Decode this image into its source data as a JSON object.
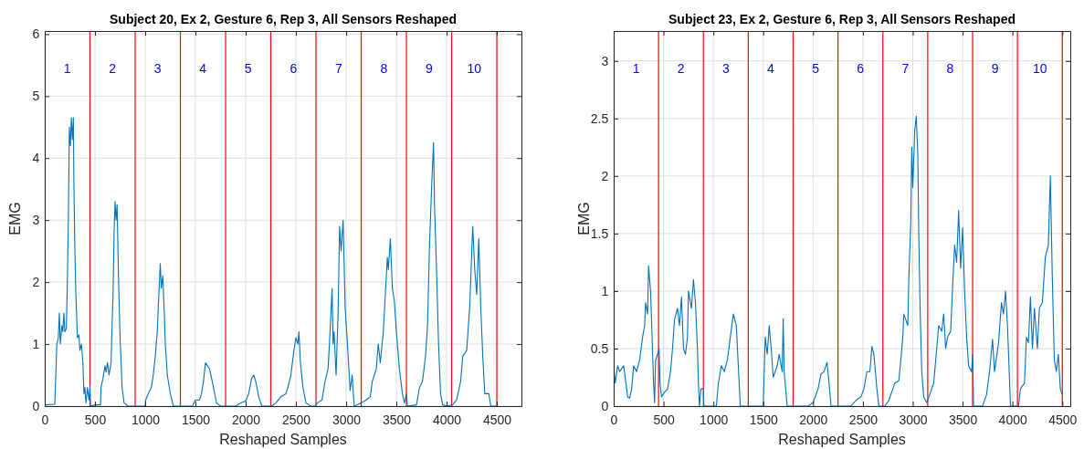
{
  "chart_data": [
    {
      "type": "line",
      "title": "Subject 20, Ex 2, Gesture 6, Rep 3, All Sensors Reshaped",
      "xlabel": "Reshaped Samples",
      "ylabel": "EMG",
      "xlim": [
        0,
        4745
      ],
      "ylim": [
        0,
        6.05
      ],
      "xticks": [
        0,
        500,
        1000,
        1500,
        2000,
        2500,
        3000,
        3500,
        4000,
        4500
      ],
      "yticks": [
        0,
        1,
        2,
        3,
        4,
        5,
        6
      ],
      "grid": true,
      "series": [
        {
          "color": "#0072bd",
          "x": [
            0,
            100,
            110,
            120,
            135,
            145,
            155,
            170,
            180,
            190,
            200,
            215,
            225,
            235,
            245,
            255,
            265,
            275,
            285,
            290,
            300,
            310,
            325,
            340,
            350,
            365,
            380,
            390,
            400,
            410,
            425,
            440,
            450,
            455,
            500,
            555,
            560,
            580,
            600,
            610,
            625,
            640,
            660,
            670,
            680,
            690,
            700,
            710,
            720,
            735,
            750,
            770,
            790,
            830,
            900,
            1000,
            1005,
            1030,
            1060,
            1080,
            1100,
            1120,
            1130,
            1150,
            1160,
            1175,
            1190,
            1200,
            1220,
            1250,
            1280,
            1470,
            1500,
            1540,
            1560,
            1580,
            1600,
            1620,
            1640,
            1680,
            1710,
            1750,
            1900,
            1950,
            2000,
            2030,
            2060,
            2080,
            2100,
            2130,
            2160,
            2260,
            2300,
            2350,
            2400,
            2420,
            2450,
            2480,
            2500,
            2520,
            2530,
            2545,
            2570,
            2600,
            2650,
            2700,
            2710,
            2760,
            2790,
            2820,
            2840,
            2860,
            2870,
            2880,
            2900,
            2920,
            2935,
            2950,
            2970,
            2990,
            3020,
            3040,
            3060,
            3080,
            3150,
            3200,
            3240,
            3260,
            3300,
            3320,
            3340,
            3370,
            3390,
            3410,
            3420,
            3440,
            3460,
            3480,
            3500,
            3530,
            3560,
            3580,
            3600,
            3610,
            3700,
            3730,
            3760,
            3790,
            3810,
            3830,
            3850,
            3870,
            3880,
            3900,
            3920,
            3940,
            3960,
            4000,
            4060,
            4100,
            4140,
            4160,
            4200,
            4230,
            4260,
            4280,
            4300,
            4320,
            4340,
            4360,
            4380,
            4420,
            4440,
            4500
          ],
          "values": [
            0.02,
            0.03,
            0.5,
            1.0,
            1.1,
            1.5,
            1.0,
            1.3,
            1.2,
            1.5,
            1.2,
            1.25,
            2.0,
            3.0,
            4.5,
            4.2,
            4.65,
            4.3,
            4.65,
            3.6,
            2.5,
            1.8,
            1.1,
            1.15,
            0.9,
            1.0,
            0.7,
            0.2,
            0.3,
            0.05,
            0.3,
            0.1,
            0.3,
            0.0,
            0.02,
            0.02,
            0.3,
            0.45,
            0.65,
            0.55,
            0.7,
            0.5,
            0.7,
            1.3,
            1.8,
            2.8,
            3.3,
            3.0,
            3.25,
            2.0,
            1.1,
            0.3,
            0.05,
            0.0,
            0.0,
            0.0,
            0.1,
            0.2,
            0.3,
            0.5,
            0.8,
            1.2,
            1.6,
            2.3,
            1.9,
            2.1,
            1.5,
            1.0,
            0.5,
            0.2,
            0.0,
            0.0,
            0.1,
            0.1,
            0.2,
            0.4,
            0.7,
            0.65,
            0.6,
            0.3,
            0.05,
            0.0,
            0.0,
            0.05,
            0.08,
            0.2,
            0.45,
            0.5,
            0.4,
            0.15,
            0.0,
            0.0,
            0.05,
            0.15,
            0.2,
            0.3,
            0.5,
            0.9,
            1.1,
            1.0,
            1.2,
            0.7,
            0.3,
            0.05,
            0.0,
            0.0,
            0.05,
            0.1,
            0.4,
            0.6,
            1.2,
            1.9,
            1.0,
            1.2,
            0.5,
            1.5,
            2.9,
            2.5,
            3.0,
            1.6,
            0.8,
            0.25,
            0.5,
            0.0,
            0.05,
            0.1,
            0.15,
            0.4,
            0.6,
            1.0,
            0.7,
            1.2,
            1.8,
            2.4,
            2.2,
            2.7,
            1.9,
            1.7,
            1.2,
            0.6,
            0.2,
            0.05,
            0.2,
            0.0,
            0.02,
            0.3,
            0.4,
            0.8,
            1.3,
            2.6,
            3.5,
            4.25,
            3.2,
            2.2,
            1.0,
            0.2,
            0.02,
            0.0,
            0.02,
            0.1,
            0.4,
            0.8,
            0.9,
            1.6,
            2.9,
            2.2,
            1.8,
            2.7,
            1.6,
            0.8,
            0.2,
            0.2,
            0.0,
            0.0
          ]
        }
      ],
      "ref_lines": [
        {
          "axis": "x",
          "value": 450,
          "color": "#ff0000"
        },
        {
          "axis": "x",
          "value": 900,
          "color": "#ff0000"
        },
        {
          "axis": "x",
          "value": 1350,
          "color": "#ff0000"
        },
        {
          "axis": "x",
          "value": 1800,
          "color": "#ff0000"
        },
        {
          "axis": "x",
          "value": 2250,
          "color": "#ff0000"
        },
        {
          "axis": "x",
          "value": 2700,
          "color": "#ff0000"
        },
        {
          "axis": "x",
          "value": 3150,
          "color": "#ff0000"
        },
        {
          "axis": "x",
          "value": 3600,
          "color": "#ff0000"
        },
        {
          "axis": "x",
          "value": 4050,
          "color": "#ff0000"
        },
        {
          "axis": "x",
          "value": 4500,
          "color": "#ff0000"
        }
      ],
      "annotations": [
        "1",
        "2",
        "3",
        "4",
        "5",
        "6",
        "7",
        "8",
        "9",
        "10"
      ]
    },
    {
      "type": "line",
      "title": "Subject 23, Ex 2, Gesture 6, Rep 3, All Sensors Reshaped",
      "xlabel": "Reshaped Samples",
      "ylabel": "EMG",
      "xlim": [
        0,
        4580
      ],
      "ylim": [
        0,
        3.26
      ],
      "xticks": [
        0,
        500,
        1000,
        1500,
        2000,
        2500,
        3000,
        3500,
        4000,
        4500
      ],
      "yticks": [
        0,
        0.5,
        1,
        1.5,
        2,
        2.5,
        3
      ],
      "grid": true,
      "series": [
        {
          "color": "#0072bd",
          "x": [
            0,
            15,
            40,
            60,
            100,
            130,
            140,
            160,
            180,
            200,
            230,
            260,
            290,
            310,
            320,
            340,
            350,
            370,
            385,
            400,
            410,
            420,
            440,
            455,
            465,
            480,
            510,
            540,
            570,
            590,
            610,
            640,
            660,
            680,
            700,
            720,
            740,
            750,
            780,
            800,
            820,
            840,
            850,
            860,
            875,
            900,
            905,
            1030,
            1050,
            1080,
            1110,
            1140,
            1170,
            1200,
            1230,
            1250,
            1270,
            1500,
            1520,
            1540,
            1560,
            1580,
            1600,
            1640,
            1660,
            1690,
            1700,
            1710,
            1740,
            1950,
            2000,
            2050,
            2080,
            2110,
            2140,
            2160,
            2180,
            2380,
            2430,
            2480,
            2510,
            2540,
            2570,
            2590,
            2610,
            2640,
            2660,
            2720,
            2760,
            2800,
            2820,
            2860,
            2880,
            2900,
            2910,
            2930,
            2950,
            2960,
            2980,
            2990,
            3000,
            3020,
            3035,
            3050,
            3060,
            3075,
            3090,
            3110,
            3140,
            3170,
            3210,
            3240,
            3260,
            3290,
            3310,
            3330,
            3350,
            3380,
            3400,
            3420,
            3440,
            3460,
            3480,
            3500,
            3520,
            3540,
            3560,
            3590,
            3600,
            3610,
            3700,
            3740,
            3770,
            3800,
            3820,
            3860,
            3890,
            3910,
            3930,
            3950,
            3980,
            4060,
            4080,
            4120,
            4140,
            4160,
            4180,
            4200,
            4220,
            4250,
            4270,
            4300,
            4330,
            4360,
            4380,
            4400,
            4420,
            4440,
            4460,
            4480,
            4500
          ],
          "values": [
            0.35,
            0.2,
            0.35,
            0.3,
            0.35,
            0.15,
            0.08,
            0.07,
            0.15,
            0.35,
            0.3,
            0.4,
            0.6,
            0.7,
            0.9,
            0.8,
            1.22,
            1.0,
            0.6,
            0.2,
            0.03,
            0.4,
            0.45,
            0.5,
            0.2,
            0.08,
            0.12,
            0.15,
            0.3,
            0.5,
            0.75,
            0.85,
            0.7,
            0.95,
            0.5,
            0.45,
            0.6,
            1.0,
            0.85,
            1.1,
            0.9,
            0.5,
            0.2,
            0.0,
            0.15,
            0.15,
            0.0,
            0.0,
            0.2,
            0.35,
            0.3,
            0.4,
            0.6,
            0.8,
            0.7,
            0.35,
            0.0,
            0.0,
            0.6,
            0.45,
            0.7,
            0.5,
            0.25,
            0.35,
            0.45,
            0.3,
            0.76,
            0.3,
            0.0,
            0.0,
            0.03,
            0.15,
            0.28,
            0.3,
            0.38,
            0.2,
            0.0,
            0.0,
            0.05,
            0.08,
            0.15,
            0.3,
            0.3,
            0.52,
            0.45,
            0.15,
            0.0,
            0.0,
            0.05,
            0.15,
            0.2,
            0.22,
            0.4,
            0.6,
            0.8,
            0.75,
            0.7,
            1.1,
            1.6,
            2.25,
            1.9,
            2.4,
            2.52,
            2.2,
            1.5,
            0.8,
            0.3,
            0.08,
            0.03,
            0.1,
            0.2,
            0.5,
            0.7,
            0.65,
            0.8,
            0.5,
            0.6,
            0.65,
            1.05,
            1.4,
            1.25,
            1.7,
            1.2,
            1.55,
            1.0,
            0.6,
            0.35,
            0.3,
            0.45,
            0.0,
            0.0,
            0.1,
            0.3,
            0.58,
            0.3,
            0.55,
            0.9,
            0.8,
            1.0,
            0.7,
            0.0,
            0.0,
            0.15,
            0.2,
            0.6,
            0.55,
            0.95,
            0.5,
            0.85,
            0.5,
            0.85,
            0.9,
            1.3,
            1.4,
            2.0,
            1.1,
            0.4,
            0.3,
            0.45,
            0.15,
            0.1
          ]
        }
      ],
      "ref_lines": [
        {
          "axis": "x",
          "value": 450,
          "color": "#ff0000"
        },
        {
          "axis": "x",
          "value": 900,
          "color": "#ff0000"
        },
        {
          "axis": "x",
          "value": 1350,
          "color": "#ff0000"
        },
        {
          "axis": "x",
          "value": 1800,
          "color": "#ff0000"
        },
        {
          "axis": "x",
          "value": 2250,
          "color": "#ff0000"
        },
        {
          "axis": "x",
          "value": 2700,
          "color": "#ff0000"
        },
        {
          "axis": "x",
          "value": 3150,
          "color": "#ff0000"
        },
        {
          "axis": "x",
          "value": 3600,
          "color": "#ff0000"
        },
        {
          "axis": "x",
          "value": 4050,
          "color": "#ff0000"
        },
        {
          "axis": "x",
          "value": 4500,
          "color": "#ff0000"
        }
      ],
      "annotations": [
        "1",
        "2",
        "3",
        "4",
        "5",
        "6",
        "7",
        "8",
        "9",
        "10"
      ]
    }
  ]
}
